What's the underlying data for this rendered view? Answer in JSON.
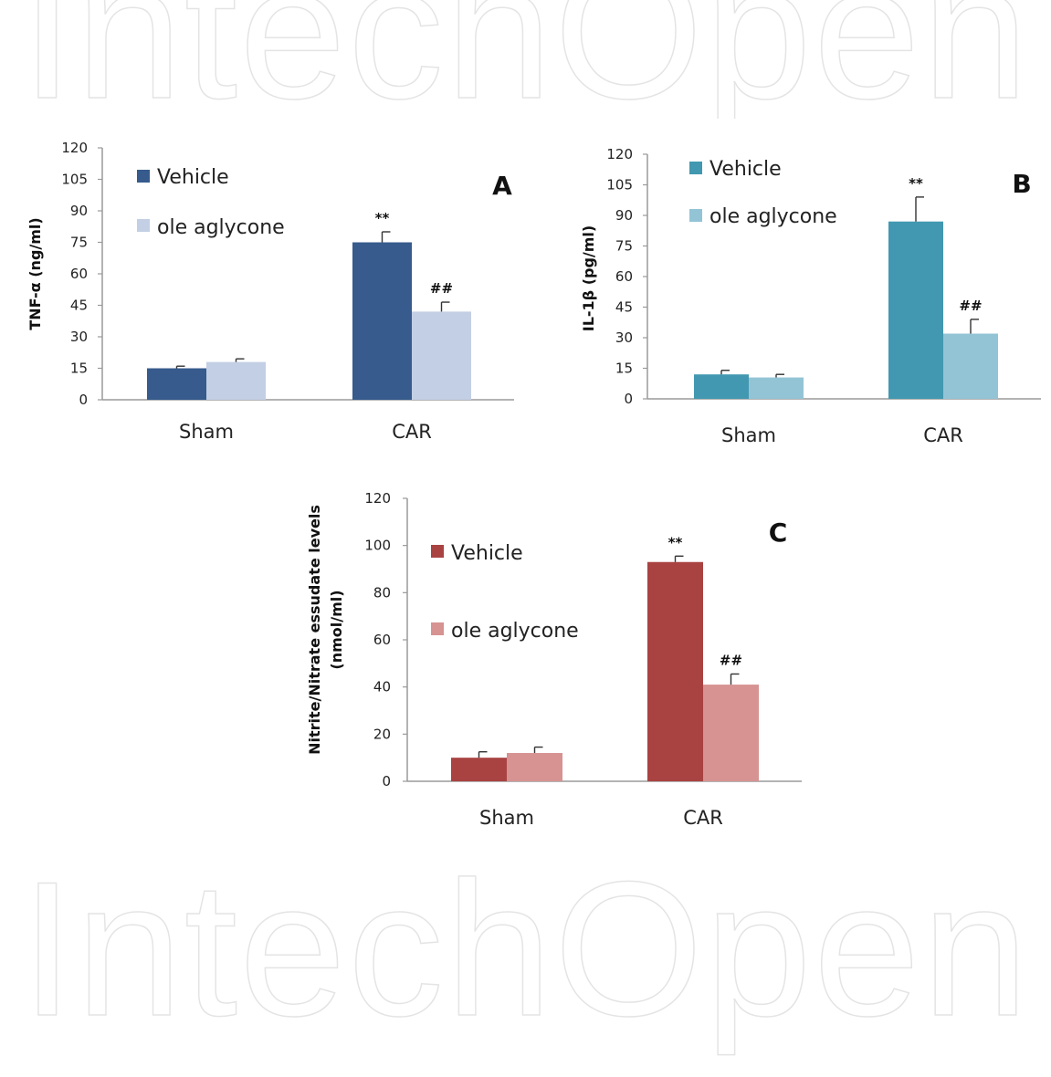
{
  "watermark": "IntechOpen",
  "chart_data": [
    {
      "type": "bar",
      "panel": "A",
      "ylabel": "TNF-α (ng/ml)",
      "categories": [
        "Sham",
        "CAR"
      ],
      "ylim": [
        0,
        120
      ],
      "yticks": [
        0,
        15,
        30,
        45,
        60,
        75,
        90,
        105,
        120
      ],
      "legend_position": "top-left",
      "series": [
        {
          "name": "Vehicle",
          "color": "#365b8c",
          "values": [
            15,
            75
          ],
          "errors": [
            1,
            5
          ],
          "annotations": [
            "",
            "**"
          ]
        },
        {
          "name": "ole aglycone",
          "color": "#c3cfe4",
          "values": [
            18,
            42
          ],
          "errors": [
            1.5,
            4.5
          ],
          "annotations": [
            "",
            "##"
          ]
        }
      ]
    },
    {
      "type": "bar",
      "panel": "B",
      "ylabel": "IL-1β (pg/ml)",
      "categories": [
        "Sham",
        "CAR"
      ],
      "ylim": [
        0,
        120
      ],
      "yticks": [
        0,
        15,
        30,
        45,
        60,
        75,
        90,
        105,
        120
      ],
      "legend_position": "top-left",
      "series": [
        {
          "name": "Vehicle",
          "color": "#4298b0",
          "values": [
            12,
            87
          ],
          "errors": [
            2,
            12
          ],
          "annotations": [
            "",
            "**"
          ]
        },
        {
          "name": "ole aglycone",
          "color": "#93c4d6",
          "values": [
            10.5,
            32
          ],
          "errors": [
            1.5,
            7
          ],
          "annotations": [
            "",
            "##"
          ]
        }
      ]
    },
    {
      "type": "bar",
      "panel": "C",
      "ylabel": "Nitrite/Nitrate essudate levels (nmol/ml)",
      "ylabel_lines": [
        "Nitrite/Nitrate essudate levels",
        "(nmol/ml)"
      ],
      "categories": [
        "Sham",
        "CAR"
      ],
      "ylim": [
        0,
        120
      ],
      "yticks": [
        0,
        20,
        40,
        60,
        80,
        100,
        120
      ],
      "legend_position": "top-left",
      "series": [
        {
          "name": "Vehicle",
          "color": "#a94342",
          "values": [
            10,
            93
          ],
          "errors": [
            2.5,
            2.5
          ],
          "annotations": [
            "",
            "**"
          ]
        },
        {
          "name": "ole aglycone",
          "color": "#d69392",
          "values": [
            12,
            41
          ],
          "errors": [
            2.5,
            4.5
          ],
          "annotations": [
            "",
            "##"
          ]
        }
      ]
    }
  ]
}
